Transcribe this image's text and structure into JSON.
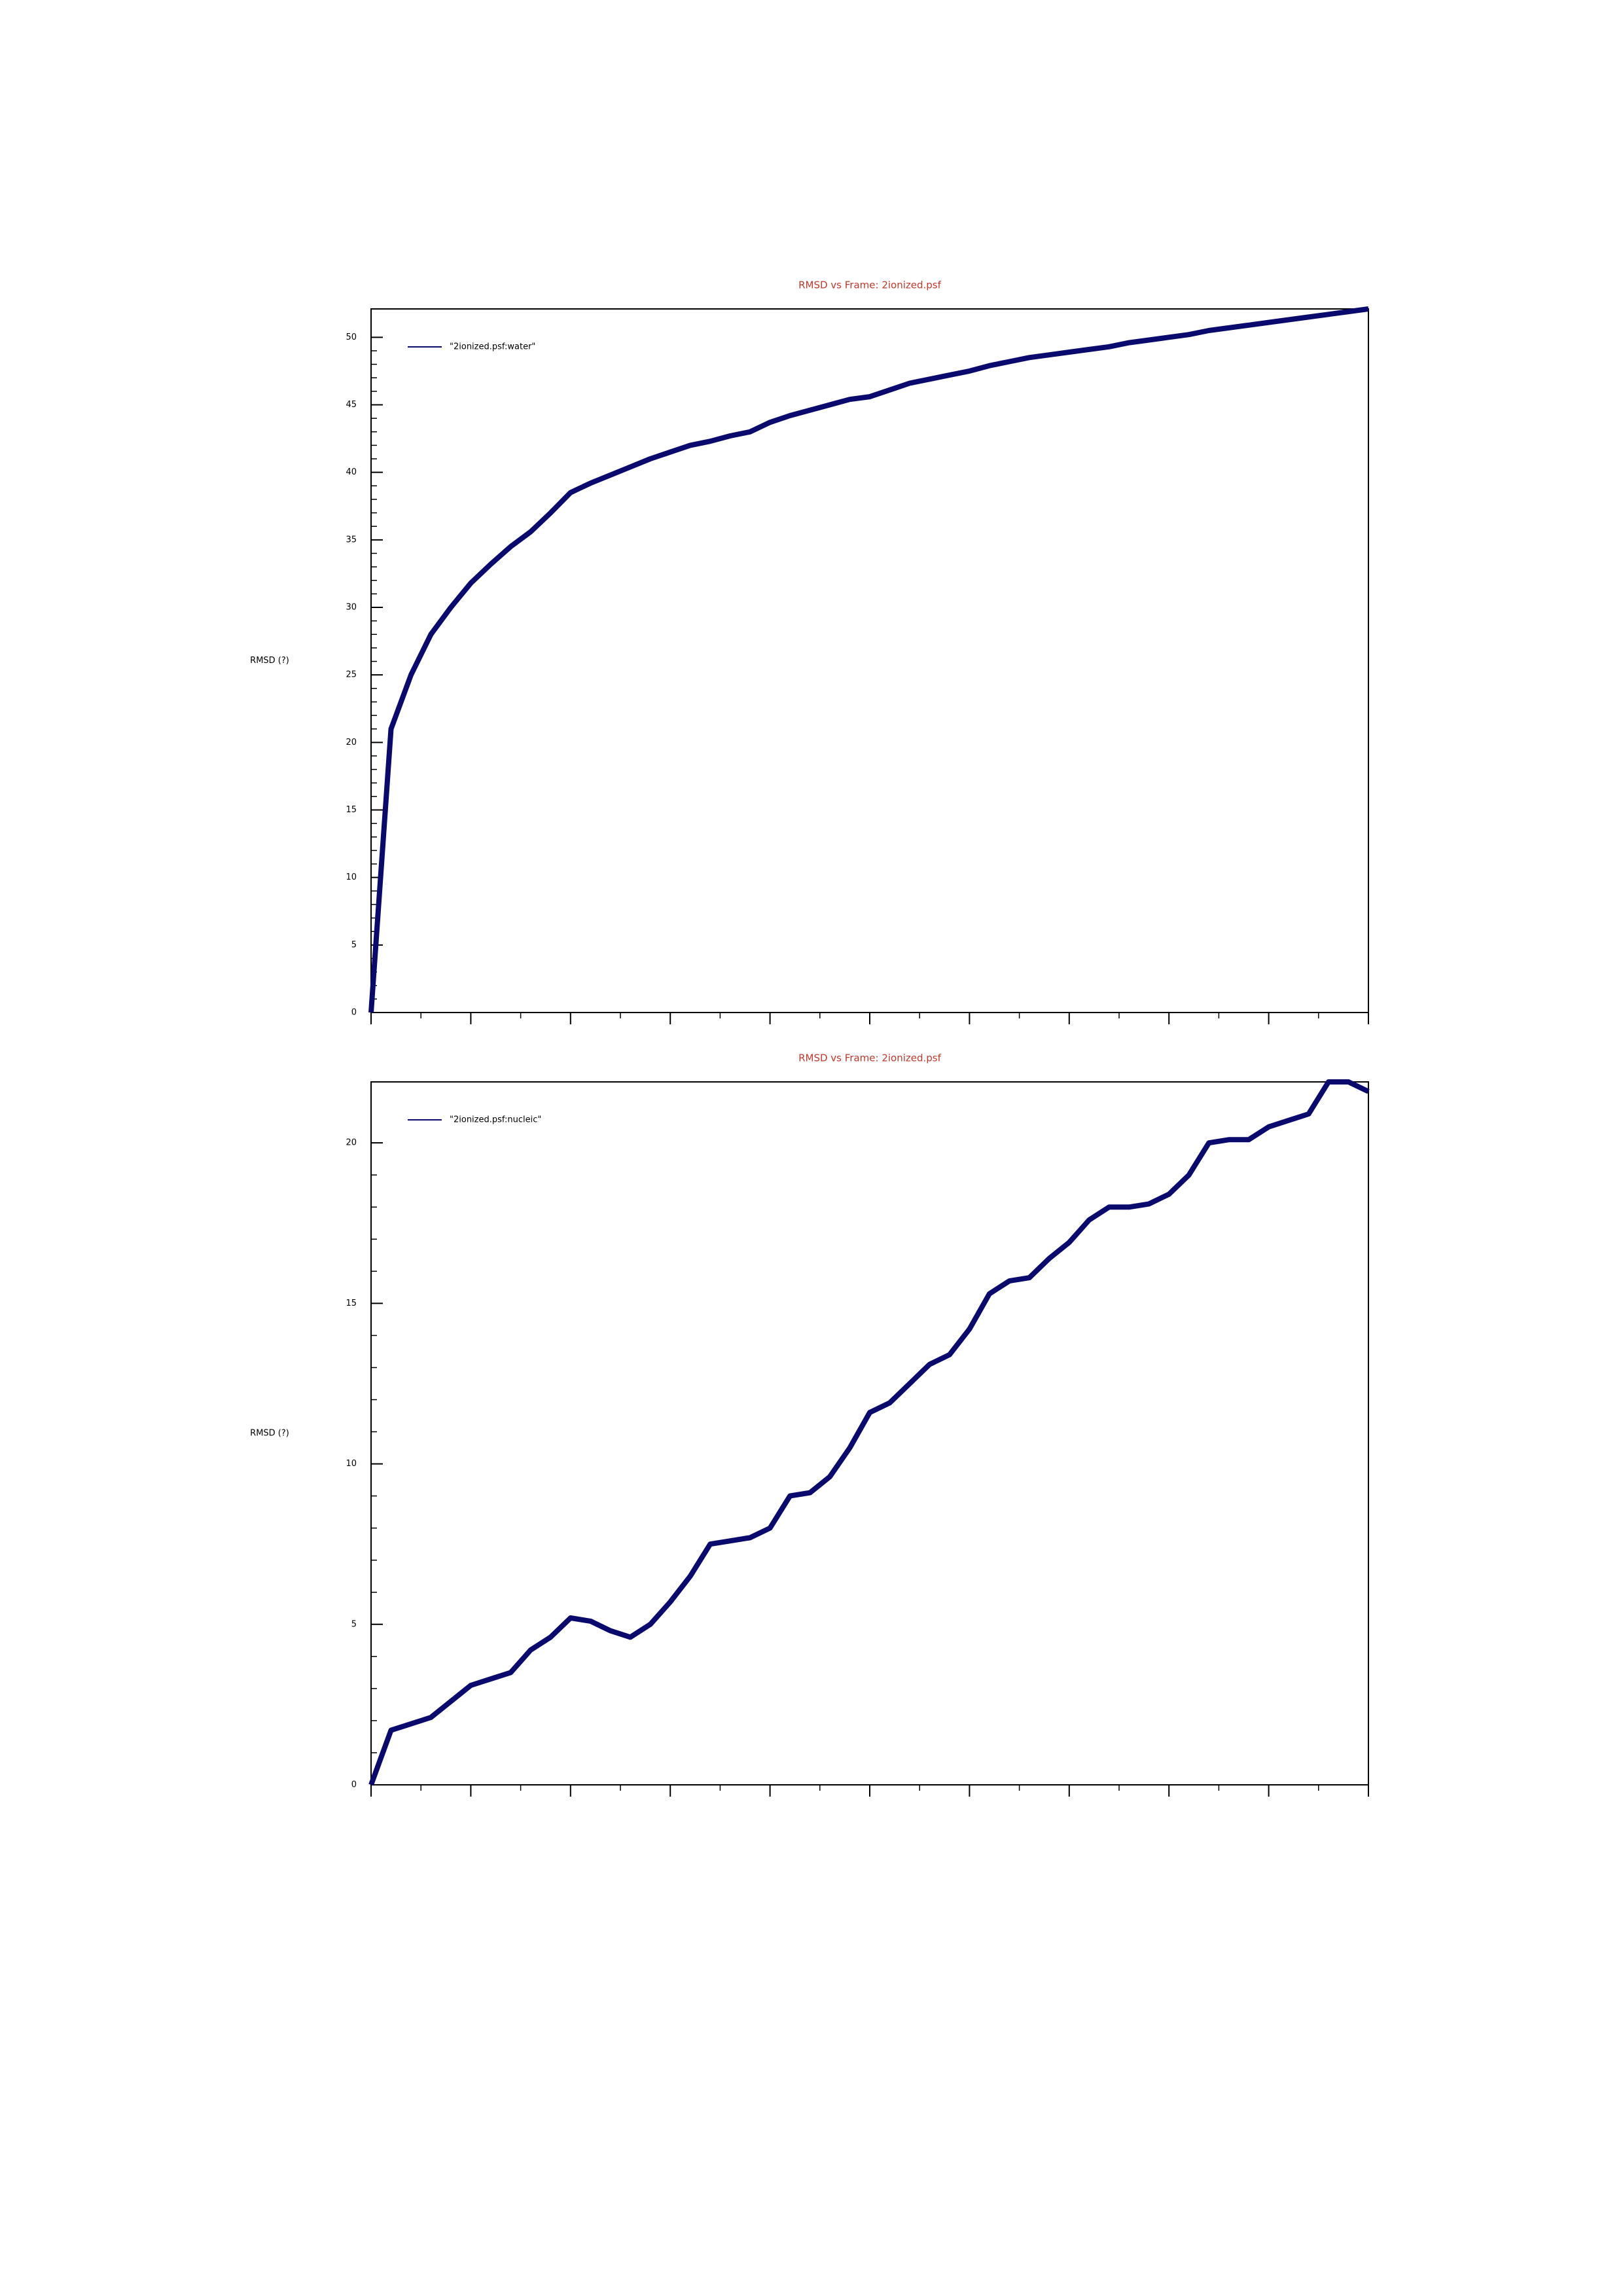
{
  "chart_data": [
    {
      "type": "line",
      "title": "RMSD vs Frame: 2ionized.psf",
      "y_label": "RMSD (?)",
      "ylim": [
        0,
        52.1
      ],
      "yticks": [
        0,
        5,
        10,
        15,
        20,
        25,
        30,
        35,
        40,
        45,
        50
      ],
      "legend": "upper left",
      "series": [
        {
          "name": "\"2ionized.psf:water\"",
          "color": "#0a0a6e",
          "values": [
            0,
            21,
            25,
            28,
            30,
            31.8,
            33.2,
            34.5,
            35.6,
            37,
            38.5,
            39.2,
            39.8,
            40.4,
            41,
            41.5,
            42,
            42.3,
            42.7,
            43,
            43.7,
            44.2,
            44.6,
            45,
            45.4,
            45.6,
            46.1,
            46.6,
            46.9,
            47.2,
            47.5,
            47.9,
            48.2,
            48.5,
            48.7,
            48.9,
            49.1,
            49.3,
            49.6,
            49.8,
            50,
            50.2,
            50.5,
            50.7,
            50.9,
            51.1,
            51.3,
            51.5,
            51.7,
            51.9,
            52.1
          ]
        }
      ]
    },
    {
      "type": "line",
      "title": "RMSD vs Frame: 2ionized.psf",
      "y_label": "RMSD (?)",
      "ylim": [
        0,
        21.9
      ],
      "yticks": [
        0,
        5,
        10,
        15,
        20
      ],
      "legend": "upper left",
      "series": [
        {
          "name": "\"2ionized.psf:nucleic\"",
          "color": "#0a0a6e",
          "values": [
            0,
            1.7,
            1.9,
            2.1,
            2.6,
            3.1,
            3.3,
            3.5,
            4.2,
            4.6,
            5.2,
            5.1,
            4.8,
            4.6,
            5.0,
            5.7,
            6.5,
            7.5,
            7.6,
            7.7,
            8.0,
            9.0,
            9.1,
            9.6,
            10.5,
            11.6,
            11.9,
            12.5,
            13.1,
            13.4,
            14.2,
            15.3,
            15.7,
            15.8,
            16.4,
            16.9,
            17.6,
            18.0,
            18.0,
            18.1,
            18.4,
            19.0,
            20.0,
            20.1,
            20.1,
            20.5,
            20.7,
            20.9,
            21.9,
            21.9,
            21.6
          ]
        }
      ]
    }
  ]
}
